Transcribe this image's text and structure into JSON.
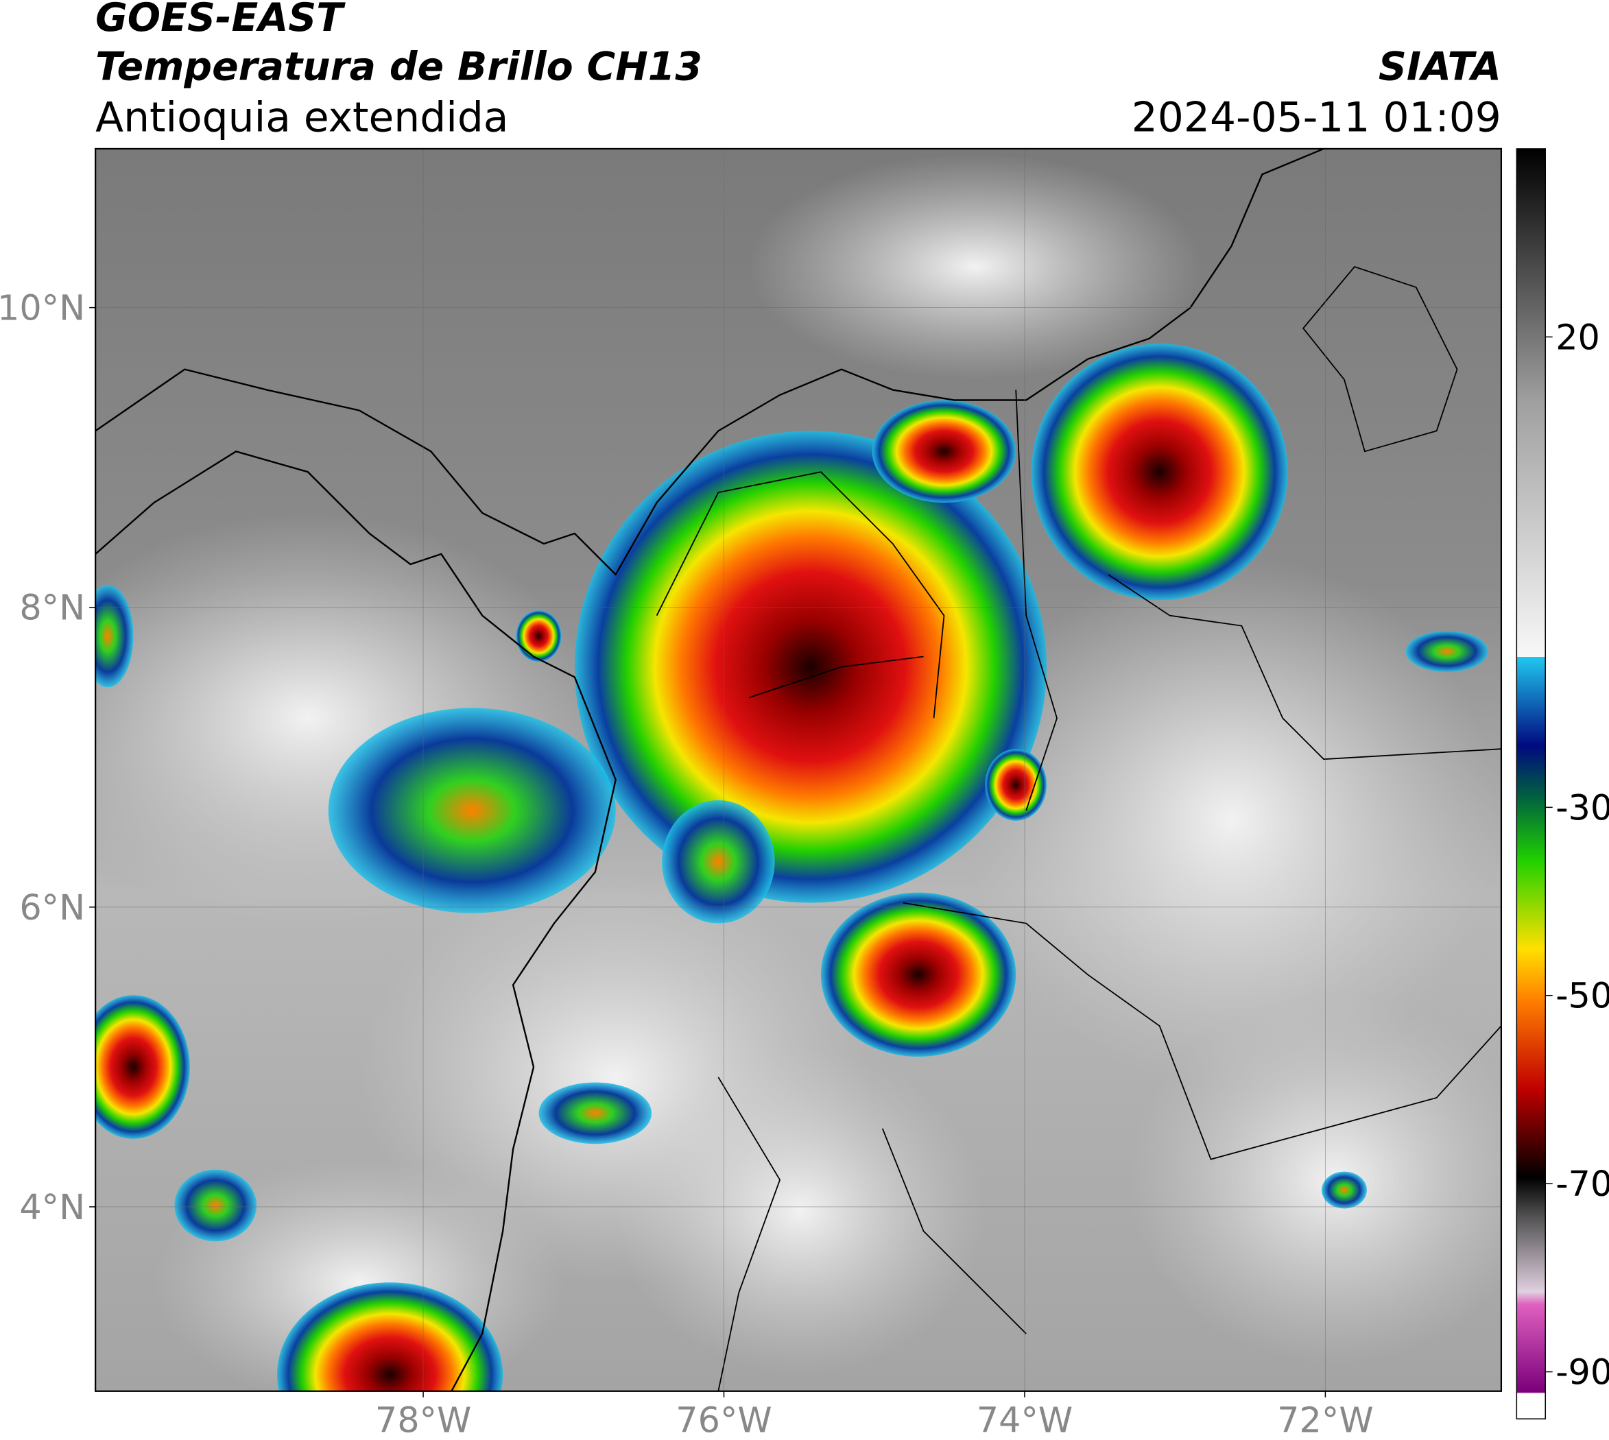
{
  "chart_data": {
    "type": "map",
    "title": "GOES-EAST",
    "subtitle": "Temperatura de Brillo CH13",
    "region": "Antioquia extendida",
    "source": "SIATA",
    "date": "2024-05-11 01:09",
    "xlim": [
      -80.18,
      -70.83
    ],
    "ylim": [
      2.77,
      11.06
    ],
    "xticks": [
      {
        "value": -78,
        "label": "78°W"
      },
      {
        "value": -76,
        "label": "76°W"
      },
      {
        "value": -74,
        "label": "74°W"
      },
      {
        "value": -72,
        "label": "72°W"
      }
    ],
    "yticks": [
      {
        "value": 4,
        "label": "4°N"
      },
      {
        "value": 6,
        "label": "6°N"
      },
      {
        "value": 8,
        "label": "8°N"
      },
      {
        "value": 10,
        "label": "10°N"
      }
    ],
    "grid": true,
    "colorbar": {
      "lim": [
        -95,
        40
      ],
      "ticks": [
        -90,
        -70,
        -50,
        -30,
        20
      ]
    }
  }
}
